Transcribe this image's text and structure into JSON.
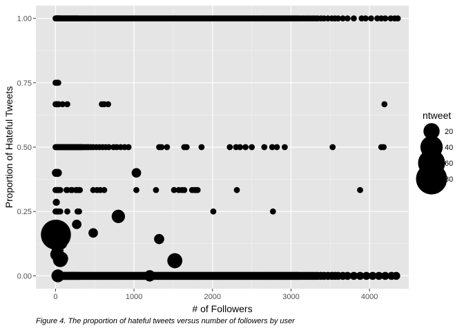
{
  "caption": "Figure 4. The proportion of hateful tweets versus number of followers by user",
  "chart_data": {
    "type": "scatter",
    "xlabel": "# of Followers",
    "ylabel": "Proportion of Hateful Tweets",
    "xlim": [
      -250,
      4500
    ],
    "ylim": [
      -0.05,
      1.05
    ],
    "x_ticks": [
      0,
      1000,
      2000,
      3000,
      4000
    ],
    "x_tick_labels": [
      "0",
      "1000",
      "2000",
      "3000",
      "4000"
    ],
    "y_ticks": [
      0,
      0.25,
      0.5,
      0.75,
      1
    ],
    "y_tick_labels": [
      "0.00",
      "0.25",
      "0.50",
      "0.75",
      "1.00"
    ],
    "grid": true,
    "background": "#e5e5e5",
    "point_color": "#000000",
    "legend": {
      "title": "ntweet",
      "position": "right",
      "entries": [
        {
          "label": "20",
          "value": 20
        },
        {
          "label": "40",
          "value": 40
        },
        {
          "label": "60",
          "value": 60
        },
        {
          "label": "80",
          "value": 80
        }
      ]
    },
    "bands": [
      {
        "y": 1.0,
        "ntweet": 2,
        "x": [
          0,
          5,
          10,
          15,
          20,
          25,
          30,
          35,
          40,
          45,
          50,
          55,
          60,
          70,
          80,
          90,
          100,
          110,
          120,
          130,
          140,
          150,
          160,
          170,
          180,
          190,
          200,
          210,
          220,
          230,
          240,
          250,
          260,
          270,
          280,
          290,
          300,
          320,
          340,
          360,
          380,
          400,
          420,
          440,
          460,
          480,
          500,
          520,
          540,
          560,
          580,
          600,
          620,
          640,
          660,
          680,
          700,
          720,
          740,
          760,
          780,
          800,
          820,
          840,
          860,
          880,
          900,
          920,
          940,
          960,
          980,
          1000,
          1020,
          1040,
          1060,
          1080,
          1100,
          1120,
          1140,
          1160,
          1180,
          1200,
          1220,
          1240,
          1260,
          1280,
          1300,
          1320,
          1340,
          1360,
          1380,
          1400,
          1420,
          1440,
          1460,
          1480,
          1500,
          1520,
          1540,
          1560,
          1580,
          1600,
          1620,
          1640,
          1660,
          1680,
          1700,
          1720,
          1740,
          1760,
          1780,
          1800,
          1820,
          1840,
          1860,
          1880,
          1900,
          1920,
          1940,
          1960,
          1980,
          2000,
          2020,
          2040,
          2060,
          2080,
          2100,
          2120,
          2140,
          2160,
          2180,
          2200,
          2220,
          2240,
          2260,
          2280,
          2300,
          2320,
          2340,
          2360,
          2380,
          2400,
          2420,
          2440,
          2460,
          2480,
          2500,
          2520,
          2540,
          2560,
          2580,
          2600,
          2620,
          2640,
          2660,
          2680,
          2700,
          2720,
          2740,
          2760,
          2780,
          2800,
          2820,
          2840,
          2860,
          2880,
          2900,
          2920,
          2940,
          2960,
          2980,
          3000,
          3020,
          3040,
          3060,
          3080,
          3100,
          3130,
          3160,
          3190,
          3220,
          3250,
          3280,
          3310,
          3340,
          3380,
          3420,
          3470,
          3520,
          3560,
          3600,
          3660,
          3720,
          3800,
          3900,
          3950,
          4020,
          4100,
          4150,
          4200,
          4270,
          4320,
          4360
        ]
      },
      {
        "y": 0.0,
        "ntweet": 4,
        "x": [
          0,
          5,
          10,
          15,
          20,
          25,
          30,
          35,
          40,
          45,
          50,
          55,
          60,
          70,
          80,
          90,
          100,
          110,
          120,
          130,
          140,
          150,
          160,
          170,
          180,
          190,
          200,
          210,
          220,
          230,
          240,
          250,
          260,
          270,
          280,
          290,
          300,
          320,
          340,
          360,
          380,
          400,
          420,
          440,
          460,
          480,
          500,
          520,
          540,
          560,
          580,
          600,
          620,
          640,
          660,
          680,
          700,
          720,
          740,
          760,
          780,
          800,
          820,
          840,
          860,
          880,
          900,
          920,
          940,
          960,
          980,
          1000,
          1020,
          1040,
          1060,
          1080,
          1100,
          1120,
          1140,
          1160,
          1180,
          1200,
          1220,
          1240,
          1260,
          1280,
          1300,
          1320,
          1340,
          1360,
          1380,
          1400,
          1420,
          1440,
          1460,
          1480,
          1500,
          1520,
          1540,
          1560,
          1580,
          1600,
          1620,
          1640,
          1660,
          1680,
          1700,
          1720,
          1740,
          1760,
          1780,
          1800,
          1820,
          1840,
          1860,
          1880,
          1900,
          1920,
          1940,
          1960,
          1980,
          2000,
          2020,
          2040,
          2060,
          2080,
          2100,
          2120,
          2140,
          2160,
          2180,
          2200,
          2220,
          2240,
          2260,
          2280,
          2300,
          2320,
          2340,
          2360,
          2380,
          2400,
          2420,
          2440,
          2460,
          2480,
          2500,
          2520,
          2540,
          2560,
          2580,
          2600,
          2620,
          2640,
          2660,
          2680,
          2700,
          2720,
          2740,
          2760,
          2780,
          2800,
          2820,
          2840,
          2860,
          2880,
          2900,
          2920,
          2940,
          2960,
          2980,
          3000,
          3020,
          3040,
          3060,
          3080,
          3100,
          3130,
          3160,
          3190,
          3220,
          3250,
          3280,
          3310,
          3340,
          3380,
          3420,
          3470,
          3520,
          3560,
          3600,
          3660,
          3720,
          3800,
          3880,
          3960,
          4040,
          4120,
          4200,
          4280,
          4340
        ]
      },
      {
        "y": 0.5,
        "ntweet": 2,
        "x": [
          0,
          10,
          20,
          30,
          40,
          50,
          60,
          70,
          80,
          90,
          100,
          110,
          120,
          130,
          140,
          150,
          160,
          170,
          180,
          190,
          200,
          210,
          220,
          230,
          240,
          250,
          260,
          270,
          280,
          290,
          300,
          310,
          320,
          330,
          340,
          360,
          380,
          400,
          420,
          450,
          480,
          520,
          560,
          600,
          640,
          680,
          740,
          780,
          830,
          880,
          930,
          1320,
          1350,
          1420,
          1640,
          1670,
          1860,
          2220,
          2300,
          2350,
          2420,
          2500,
          2660,
          2760,
          2820,
          2920,
          3530,
          4150,
          4180
        ]
      },
      {
        "y": 0.3333,
        "ntweet": 2,
        "x": [
          0,
          10,
          20,
          30,
          40,
          60,
          140,
          150,
          200,
          210,
          260,
          270,
          300,
          310,
          480,
          530,
          570,
          620,
          1030,
          1280,
          1510,
          1570,
          1610,
          1640,
          1740,
          1770,
          1790,
          1810,
          2310,
          3880
        ]
      },
      {
        "y": 0.6667,
        "ntweet": 2,
        "x": [
          0,
          10,
          20,
          40,
          90,
          150,
          590,
          620,
          670,
          4190
        ]
      },
      {
        "y": 0.75,
        "ntweet": 2,
        "x": [
          0,
          20,
          35
        ]
      },
      {
        "y": 0.25,
        "ntweet": 2,
        "x": [
          0,
          10,
          20,
          40,
          60,
          150,
          280,
          300,
          2010,
          2770
        ]
      }
    ],
    "points": [
      {
        "x": 5,
        "y": 0.4,
        "ntweet": 4
      },
      {
        "x": 30,
        "y": 0.4,
        "ntweet": 4
      },
      {
        "x": 1030,
        "y": 0.4,
        "ntweet": 6
      },
      {
        "x": 10,
        "y": 0.2857,
        "ntweet": 3
      },
      {
        "x": 270,
        "y": 0.2,
        "ntweet": 6
      },
      {
        "x": 800,
        "y": 0.2308,
        "ntweet": 13
      },
      {
        "x": 480,
        "y": 0.1667,
        "ntweet": 6
      },
      {
        "x": 1320,
        "y": 0.1429,
        "ntweet": 7
      },
      {
        "x": 1520,
        "y": 0.0588,
        "ntweet": 17
      },
      {
        "x": 5,
        "y": 0.16,
        "ntweet": 75
      },
      {
        "x": 10,
        "y": 0.13,
        "ntweet": 16
      },
      {
        "x": 20,
        "y": 0.11,
        "ntweet": 9
      },
      {
        "x": 30,
        "y": 0.1,
        "ntweet": 9
      },
      {
        "x": 50,
        "y": 0.15,
        "ntweet": 8
      },
      {
        "x": 80,
        "y": 0.125,
        "ntweet": 8
      },
      {
        "x": 15,
        "y": 0.0833,
        "ntweet": 12
      },
      {
        "x": 70,
        "y": 0.0667,
        "ntweet": 15
      },
      {
        "x": 60,
        "y": 0.0625,
        "ntweet": 16
      },
      {
        "x": 1200,
        "y": 0.0,
        "ntweet": 9
      },
      {
        "x": 30,
        "y": 0.0,
        "ntweet": 12
      }
    ]
  }
}
